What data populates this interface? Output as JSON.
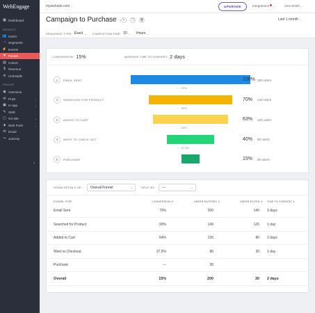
{
  "sidebar": {
    "logo": "WebEngage",
    "insights_label": "INSIGHTS",
    "engage_label": "ENGAGE",
    "collapse_icon": "chevron-left-icon",
    "items": [
      {
        "label": "Dashboard",
        "icon": "dashboard-icon",
        "glyph": "▦"
      },
      {
        "label": "Users",
        "icon": "users-icon",
        "glyph": "👥"
      },
      {
        "label": "Segments",
        "icon": "segments-icon",
        "glyph": "◔"
      },
      {
        "label": "Events",
        "icon": "events-icon",
        "glyph": "⚡"
      },
      {
        "label": "Funnel",
        "icon": "funnel-icon",
        "glyph": "▼"
      },
      {
        "label": "Cohort",
        "icon": "cohort-icon",
        "glyph": "▤"
      },
      {
        "label": "Revenue",
        "icon": "revenue-icon",
        "glyph": "$"
      },
      {
        "label": "Uninstalls",
        "icon": "uninstalls-icon",
        "glyph": "⊘"
      },
      {
        "label": "Overview",
        "icon": "overview-icon",
        "glyph": "◉"
      },
      {
        "label": "Push",
        "icon": "push-icon",
        "glyph": "✉"
      },
      {
        "label": "In-app",
        "icon": "in-app-icon",
        "glyph": "▣"
      },
      {
        "label": "SMS",
        "icon": "sms-icon",
        "glyph": "✎"
      },
      {
        "label": "On-site",
        "icon": "on-site-icon",
        "glyph": "▢"
      },
      {
        "label": "Web Push",
        "icon": "web-push-icon",
        "glyph": "◈"
      },
      {
        "label": "Email",
        "icon": "email-icon",
        "glyph": "✉"
      },
      {
        "label": "Journey",
        "icon": "journey-icon",
        "glyph": "⤳"
      }
    ]
  },
  "topbar": {
    "website": "mywebsite.com",
    "upgrade_label": "UPGRADE",
    "integrations_label": "Integrations",
    "user_label": "Alex Smith"
  },
  "header": {
    "title": "Campaign to Purchase",
    "date_range": "Last 1 month",
    "sequence_type_label": "SEQUENCE TYPE:",
    "sequence_type_value": "Exact",
    "completion_time_label": "COMPLETION TIME:",
    "completion_time_value": "10",
    "completion_unit": "Hours"
  },
  "summary": {
    "conversion_label": "CONVERSION:",
    "conversion_value": "15%",
    "avg_time_label": "AVERAGE TIME TO CONVERT:",
    "avg_time_value": "2 days"
  },
  "colors": {
    "accent": "#e95a59",
    "upgrade": "#4d3fc4",
    "sidebar_bg": "#2b2f3b"
  },
  "funnel": {
    "steps": [
      {
        "num": "1",
        "name": "Email Sent",
        "percent": "100%",
        "users": "200 users",
        "fraction": 1.0,
        "color": "#1e88e5"
      },
      {
        "num": "2",
        "name": "Searched for product",
        "percent": "70%",
        "users": "140 users",
        "fraction": 0.7,
        "color": "#f5b400"
      },
      {
        "num": "3",
        "name": "Added to cart",
        "percent": "63%",
        "users": "126 users",
        "fraction": 0.63,
        "color": "#fcd34d"
      },
      {
        "num": "4",
        "name": "Went to check-out",
        "percent": "40%",
        "users": "80 users",
        "fraction": 0.4,
        "color": "#22d47a"
      },
      {
        "num": "5",
        "name": "Purchase",
        "percent": "15%",
        "users": "30 users",
        "fraction": 0.15,
        "color": "#17a86b"
      }
    ],
    "drops": [
      "70%",
      "90%",
      "64%",
      "37.5%"
    ]
  },
  "details": {
    "show_label": "SHOW DETAILS OF:",
    "show_value": "Overall Funnel",
    "split_label": "SPLIT BY:",
    "split_value": "---",
    "columns": [
      "FUNNEL STEP",
      "CONVERSION",
      "USERS ENTERED",
      "USERS EXITED",
      "TIME TO CONVERT"
    ],
    "rows": [
      [
        "Email Sent",
        "70%",
        "200",
        "140",
        "3 days"
      ],
      [
        "Searched for Product",
        "90%",
        "140",
        "126",
        "1 day"
      ],
      [
        "Added to Cart",
        "64%",
        "126",
        "80",
        "2 days"
      ],
      [
        "Went to Checkout",
        "37.5%",
        "80",
        "30",
        "1 day"
      ],
      [
        "Purchase",
        "---",
        "30",
        "",
        ""
      ]
    ],
    "total": [
      "Overall",
      "15%",
      "200",
      "30",
      "2 days"
    ]
  }
}
